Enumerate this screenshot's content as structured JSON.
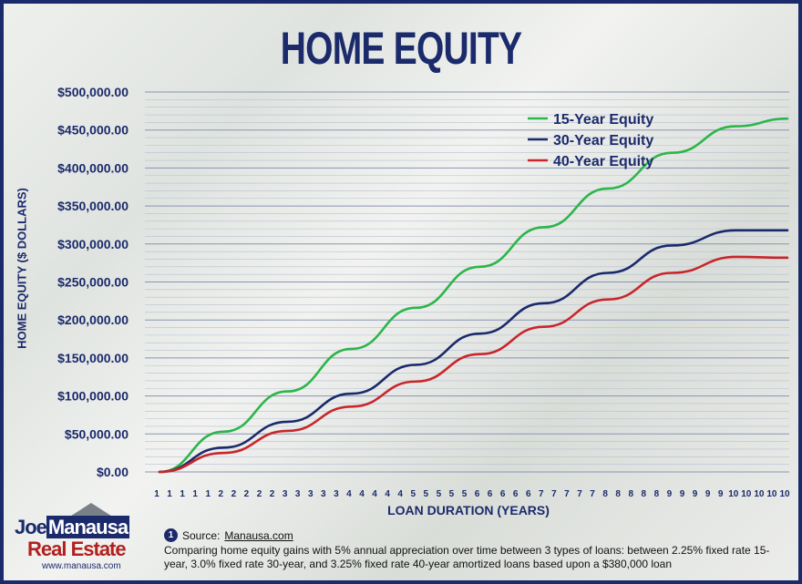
{
  "chart_data": {
    "type": "line",
    "title": "HOME EQUITY",
    "xlabel": "LOAN DURATION (YEARS)",
    "ylabel": "HOME EQUITY ($ DOLLARS)",
    "ylim": [
      0,
      500000
    ],
    "yticks": [
      "$0.00",
      "$50,000.00",
      "$100,000.00",
      "$150,000.00",
      "$200,000.00",
      "$250,000.00",
      "$300,000.00",
      "$350,000.00",
      "$400,000.00",
      "$450,000.00",
      "$500,000.00"
    ],
    "xtick_labels": [
      "1",
      "1",
      "1",
      "1",
      "1",
      "2",
      "2",
      "2",
      "2",
      "2",
      "3",
      "3",
      "3",
      "3",
      "3",
      "4",
      "4",
      "4",
      "4",
      "4",
      "5",
      "5",
      "5",
      "5",
      "5",
      "6",
      "6",
      "6",
      "6",
      "6",
      "7",
      "7",
      "7",
      "7",
      "7",
      "8",
      "8",
      "8",
      "8",
      "8",
      "9",
      "9",
      "9",
      "9",
      "9",
      "10",
      "10",
      "10",
      "10",
      "10"
    ],
    "x": [
      0,
      5,
      10,
      15,
      20,
      25,
      30,
      35,
      40,
      45,
      49
    ],
    "series": [
      {
        "name": "15-Year Equity",
        "color": "#2cb54a",
        "values": [
          0,
          53000,
          106000,
          162000,
          216000,
          270000,
          322000,
          373000,
          420000,
          455000,
          465000
        ]
      },
      {
        "name": "30-Year Equity",
        "color": "#1b2a6b",
        "values": [
          0,
          32000,
          66000,
          103000,
          141000,
          182000,
          222000,
          262000,
          298000,
          318000,
          318000
        ]
      },
      {
        "name": "40-Year Equity",
        "color": "#c8262b",
        "values": [
          0,
          25000,
          54000,
          86000,
          119000,
          155000,
          191000,
          227000,
          262000,
          283000,
          282000
        ]
      }
    ],
    "grid": true,
    "legend": "top-right"
  },
  "logo": {
    "name_part1": "Joe",
    "name_part2": "Manausa",
    "name_line2": "Real Estate",
    "url": "www.manausa.com"
  },
  "source": {
    "number": "1",
    "label": "Source:",
    "link": "Manausa.com",
    "description": "Comparing home equity gains with 5% annual appreciation over time between 3 types of loans: between 2.25% fixed rate 15-year, 3.0% fixed rate 30-year, and 3.25% fixed rate 40-year amortized loans based upon a $380,000 loan"
  }
}
